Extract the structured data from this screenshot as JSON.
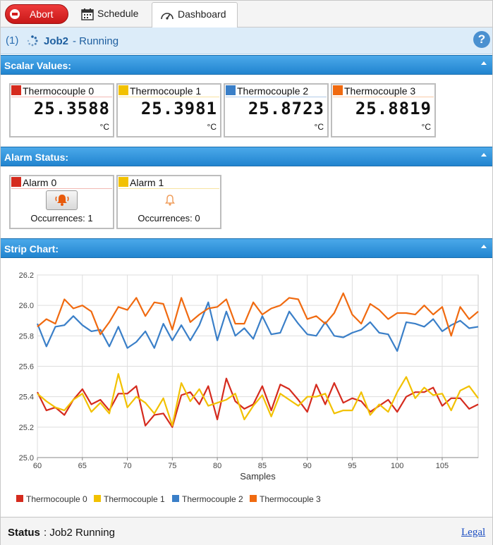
{
  "toolbar": {
    "abort_label": "Abort",
    "tabs": [
      {
        "label": "Schedule",
        "icon": "calendar-icon"
      },
      {
        "label": "Dashboard",
        "icon": "gauge-icon",
        "active": true
      }
    ]
  },
  "job": {
    "number": "(1)",
    "name": "Job2",
    "state": "- Running",
    "help_label": "?"
  },
  "sections": {
    "scalar": "Scalar Values:",
    "alarm": "Alarm Status:",
    "chart": "Strip Chart:"
  },
  "scalars": [
    {
      "name": "Thermocouple 0",
      "value": "25.3588",
      "unit": "°C",
      "color": "#d52b1e"
    },
    {
      "name": "Thermocouple 1",
      "value": "25.3981",
      "unit": "°C",
      "color": "#f2c100"
    },
    {
      "name": "Thermocouple 2",
      "value": "25.8723",
      "unit": "°C",
      "color": "#3a7fc8"
    },
    {
      "name": "Thermocouple 3",
      "value": "25.8819",
      "unit": "°C",
      "color": "#f06a10"
    }
  ],
  "alarms": [
    {
      "name": "Alarm 0",
      "occurrences": "Occurrences: 1",
      "color": "#d52b1e",
      "active": true
    },
    {
      "name": "Alarm 1",
      "occurrences": "Occurrences: 0",
      "color": "#f2c100",
      "active": false
    }
  ],
  "status": {
    "key": "Status",
    "value": ": Job2 Running",
    "legal": "Legal"
  },
  "chart_data": {
    "type": "line",
    "title": "",
    "xlabel": "Samples",
    "ylabel": "",
    "xlim": [
      60,
      109
    ],
    "ylim": [
      25.0,
      26.2
    ],
    "xticks": [
      60,
      65,
      70,
      75,
      80,
      85,
      90,
      95,
      100,
      105
    ],
    "yticks": [
      25.0,
      25.2,
      25.4,
      25.6,
      25.8,
      26.0,
      26.2
    ],
    "grid": true,
    "legend_position": "bottom",
    "x": [
      60,
      61,
      62,
      63,
      64,
      65,
      66,
      67,
      68,
      69,
      70,
      71,
      72,
      73,
      74,
      75,
      76,
      77,
      78,
      79,
      80,
      81,
      82,
      83,
      84,
      85,
      86,
      87,
      88,
      89,
      90,
      91,
      92,
      93,
      94,
      95,
      96,
      97,
      98,
      99,
      100,
      101,
      102,
      103,
      104,
      105,
      106,
      107,
      108,
      109
    ],
    "series": [
      {
        "name": "Thermocouple 0",
        "color": "#d52b1e",
        "values": [
          25.43,
          25.31,
          25.33,
          25.28,
          25.38,
          25.45,
          25.35,
          25.38,
          25.31,
          25.42,
          25.42,
          25.47,
          25.21,
          25.28,
          25.29,
          25.2,
          25.41,
          25.43,
          25.35,
          25.47,
          25.25,
          25.52,
          25.37,
          25.32,
          25.35,
          25.47,
          25.31,
          25.48,
          25.45,
          25.38,
          25.3,
          25.48,
          25.35,
          25.49,
          25.36,
          25.39,
          25.37,
          25.3,
          25.34,
          25.38,
          25.3,
          25.4,
          25.43,
          25.43,
          25.46,
          25.34,
          25.39,
          25.39,
          25.32,
          25.35
        ]
      },
      {
        "name": "Thermocouple 1",
        "color": "#f2c100",
        "values": [
          25.42,
          25.37,
          25.33,
          25.31,
          25.38,
          25.42,
          25.3,
          25.36,
          25.29,
          25.55,
          25.33,
          25.4,
          25.36,
          25.29,
          25.39,
          25.21,
          25.49,
          25.37,
          25.45,
          25.34,
          25.36,
          25.38,
          25.42,
          25.25,
          25.34,
          25.41,
          25.27,
          25.42,
          25.38,
          25.34,
          25.4,
          25.4,
          25.42,
          25.29,
          25.31,
          25.31,
          25.43,
          25.28,
          25.35,
          25.3,
          25.43,
          25.53,
          25.39,
          25.46,
          25.41,
          25.42,
          25.31,
          25.44,
          25.47,
          25.39
        ]
      },
      {
        "name": "Thermocouple 2",
        "color": "#3a7fc8",
        "values": [
          25.88,
          25.73,
          25.86,
          25.87,
          25.93,
          25.87,
          25.83,
          25.84,
          25.73,
          25.86,
          25.72,
          25.76,
          25.83,
          25.72,
          25.88,
          25.77,
          25.87,
          25.77,
          25.87,
          26.02,
          25.77,
          25.96,
          25.8,
          25.85,
          25.78,
          25.93,
          25.81,
          25.82,
          25.96,
          25.88,
          25.81,
          25.8,
          25.89,
          25.8,
          25.79,
          25.82,
          25.84,
          25.89,
          25.82,
          25.81,
          25.7,
          25.89,
          25.88,
          25.86,
          25.91,
          25.83,
          25.87,
          25.9,
          25.85,
          25.86
        ]
      },
      {
        "name": "Thermocouple 3",
        "color": "#f06a10",
        "values": [
          25.86,
          25.91,
          25.88,
          26.04,
          25.98,
          26.0,
          25.96,
          25.81,
          25.89,
          25.99,
          25.97,
          26.05,
          25.93,
          26.02,
          26.01,
          25.84,
          26.05,
          25.89,
          25.94,
          25.98,
          25.99,
          26.04,
          25.88,
          25.88,
          26.02,
          25.94,
          25.98,
          26.0,
          26.05,
          26.04,
          25.91,
          25.93,
          25.88,
          25.95,
          26.08,
          25.94,
          25.88,
          26.01,
          25.97,
          25.91,
          25.95,
          25.95,
          25.94,
          26.0,
          25.94,
          25.99,
          25.8,
          25.99,
          25.91,
          25.96
        ]
      }
    ]
  }
}
